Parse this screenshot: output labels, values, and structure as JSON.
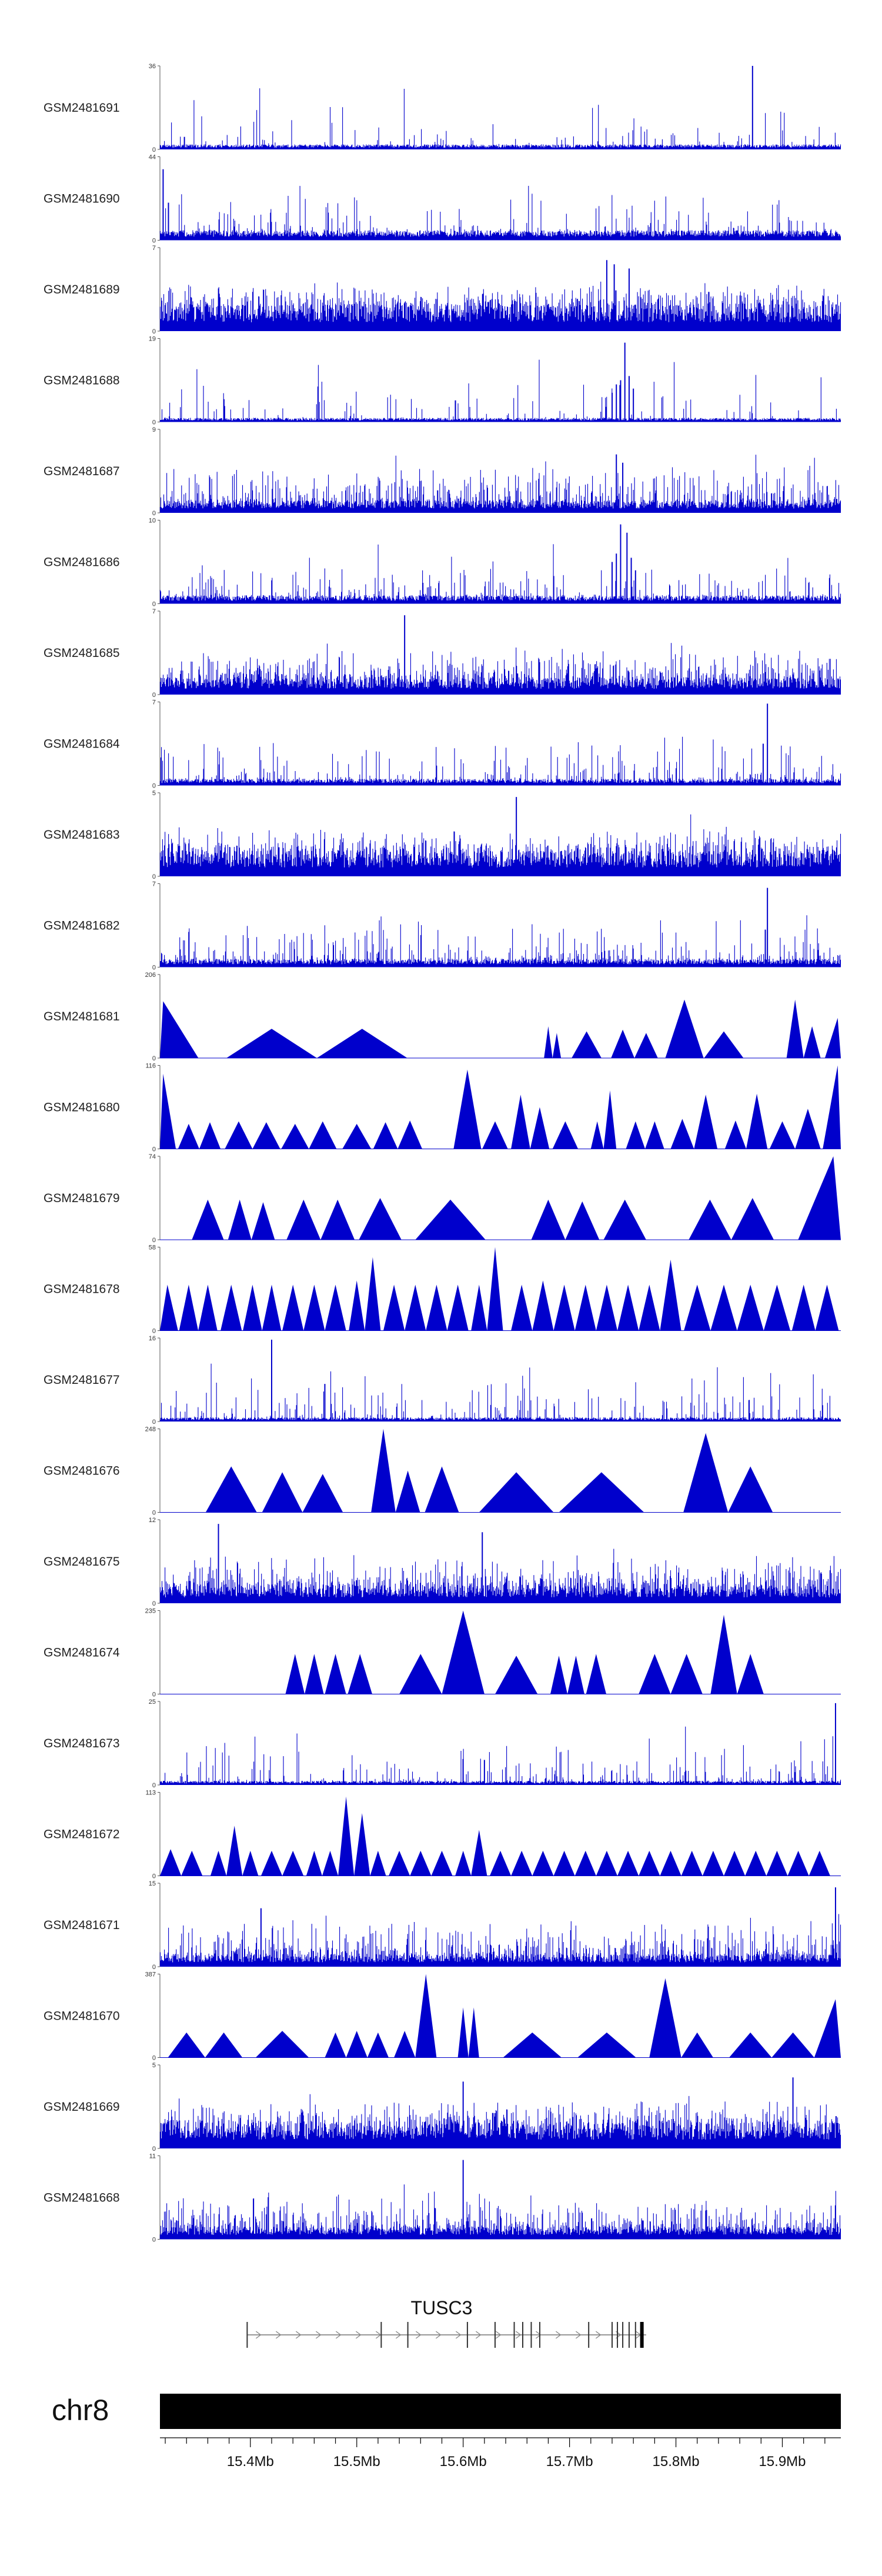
{
  "chart_data": {
    "type": "area",
    "chromosome": "chr8",
    "gene": "TUSC3",
    "x_range_mb": [
      15.315,
      15.955
    ],
    "axis_ticks_mb": [
      15.4,
      15.5,
      15.6,
      15.7,
      15.8,
      15.9
    ],
    "axis_tick_labels": [
      "15.4Mb",
      "15.5Mb",
      "15.6Mb",
      "15.7Mb",
      "15.8Mb",
      "15.9Mb"
    ],
    "color": "#0000cc",
    "series": [
      {
        "name": "GSM2481691",
        "ymax": 36,
        "ymax_label": "36",
        "ymin_label": "0",
        "style": "bars",
        "baseline": 0.06,
        "noise": 0.05,
        "spikes": [
          {
            "x": 15.872,
            "y": 1.0
          },
          {
            "x": 15.338,
            "y": 0.15
          }
        ]
      },
      {
        "name": "GSM2481690",
        "ymax": 44,
        "ymax_label": "44",
        "ymin_label": "0",
        "style": "bars",
        "baseline": 0.12,
        "noise": 0.1,
        "spikes": [
          {
            "x": 15.318,
            "y": 0.85
          },
          {
            "x": 15.323,
            "y": 0.45
          }
        ]
      },
      {
        "name": "GSM2481689",
        "ymax": 7,
        "ymax_label": "7",
        "ymin_label": "0",
        "style": "bars",
        "baseline": 0.3,
        "noise": 0.4,
        "spikes": [
          {
            "x": 15.735,
            "y": 0.85
          },
          {
            "x": 15.742,
            "y": 0.8
          },
          {
            "x": 15.756,
            "y": 0.75
          }
        ]
      },
      {
        "name": "GSM2481688",
        "ymax": 19,
        "ymax_label": "19",
        "ymin_label": "0",
        "style": "bars",
        "baseline": 0.05,
        "noise": 0.08,
        "spikes": [
          {
            "x": 15.752,
            "y": 0.95
          },
          {
            "x": 15.748,
            "y": 0.5
          },
          {
            "x": 15.744,
            "y": 0.45
          },
          {
            "x": 15.756,
            "y": 0.55
          },
          {
            "x": 15.74,
            "y": 0.35
          },
          {
            "x": 15.76,
            "y": 0.4
          }
        ]
      },
      {
        "name": "GSM2481687",
        "ymax": 9,
        "ymax_label": "9",
        "ymin_label": "0",
        "style": "bars",
        "baseline": 0.15,
        "noise": 0.3,
        "spikes": [
          {
            "x": 15.744,
            "y": 0.7
          },
          {
            "x": 15.75,
            "y": 0.6
          }
        ]
      },
      {
        "name": "GSM2481686",
        "ymax": 10,
        "ymax_label": "10",
        "ymin_label": "0",
        "style": "bars",
        "baseline": 0.1,
        "noise": 0.15,
        "spikes": [
          {
            "x": 15.748,
            "y": 0.95
          },
          {
            "x": 15.754,
            "y": 0.85
          },
          {
            "x": 15.744,
            "y": 0.6
          },
          {
            "x": 15.74,
            "y": 0.5
          },
          {
            "x": 15.758,
            "y": 0.55
          },
          {
            "x": 15.762,
            "y": 0.4
          }
        ]
      },
      {
        "name": "GSM2481685",
        "ymax": 7,
        "ymax_label": "7",
        "ymin_label": "0",
        "style": "bars",
        "baseline": 0.2,
        "noise": 0.35,
        "spikes": [
          {
            "x": 15.545,
            "y": 0.95
          }
        ]
      },
      {
        "name": "GSM2481684",
        "ymax": 7,
        "ymax_label": "7",
        "ymin_label": "0",
        "style": "bars",
        "baseline": 0.08,
        "noise": 0.15,
        "spikes": [
          {
            "x": 15.886,
            "y": 0.98
          },
          {
            "x": 15.882,
            "y": 0.5
          }
        ]
      },
      {
        "name": "GSM2481683",
        "ymax": 5,
        "ymax_label": "5",
        "ymin_label": "0",
        "style": "bars",
        "baseline": 0.3,
        "noise": 0.35,
        "spikes": [
          {
            "x": 15.65,
            "y": 0.95
          }
        ]
      },
      {
        "name": "GSM2481682",
        "ymax": 7,
        "ymax_label": "7",
        "ymin_label": "0",
        "style": "bars",
        "baseline": 0.1,
        "noise": 0.2,
        "spikes": [
          {
            "x": 15.886,
            "y": 0.95
          },
          {
            "x": 15.884,
            "y": 0.45
          }
        ]
      },
      {
        "name": "GSM2481681",
        "ymax": 206,
        "ymax_label": "206",
        "ymin_label": "0",
        "style": "triangles",
        "peaks": [
          [
            15.318,
            0.68
          ],
          [
            15.42,
            0.35
          ],
          [
            15.505,
            0.35
          ],
          [
            15.68,
            0.38
          ],
          [
            15.688,
            0.3
          ],
          [
            15.716,
            0.32
          ],
          [
            15.75,
            0.34
          ],
          [
            15.772,
            0.3
          ],
          [
            15.808,
            0.7
          ],
          [
            15.845,
            0.32
          ],
          [
            15.912,
            0.7
          ],
          [
            15.928,
            0.38
          ],
          [
            15.952,
            0.48
          ]
        ]
      },
      {
        "name": "GSM2481680",
        "ymax": 116,
        "ymax_label": "116",
        "ymin_label": "0",
        "style": "triangles",
        "peaks": [
          [
            15.318,
            0.9
          ],
          [
            15.342,
            0.3
          ],
          [
            15.362,
            0.32
          ],
          [
            15.389,
            0.33
          ],
          [
            15.415,
            0.32
          ],
          [
            15.442,
            0.3
          ],
          [
            15.468,
            0.33
          ],
          [
            15.5,
            0.3
          ],
          [
            15.527,
            0.32
          ],
          [
            15.55,
            0.34
          ],
          [
            15.604,
            0.95
          ],
          [
            15.63,
            0.33
          ],
          [
            15.654,
            0.65
          ],
          [
            15.672,
            0.5
          ],
          [
            15.696,
            0.33
          ],
          [
            15.726,
            0.33
          ],
          [
            15.738,
            0.7
          ],
          [
            15.762,
            0.33
          ],
          [
            15.78,
            0.33
          ],
          [
            15.806,
            0.36
          ],
          [
            15.828,
            0.65
          ],
          [
            15.856,
            0.34
          ],
          [
            15.876,
            0.66
          ],
          [
            15.9,
            0.33
          ],
          [
            15.924,
            0.48
          ],
          [
            15.952,
            1.0
          ]
        ]
      },
      {
        "name": "GSM2481679",
        "ymax": 74,
        "ymax_label": "74",
        "ymin_label": "0",
        "style": "triangles",
        "peaks": [
          [
            15.36,
            0.48
          ],
          [
            15.39,
            0.48
          ],
          [
            15.412,
            0.45
          ],
          [
            15.45,
            0.48
          ],
          [
            15.482,
            0.48
          ],
          [
            15.522,
            0.5
          ],
          [
            15.588,
            0.48
          ],
          [
            15.68,
            0.48
          ],
          [
            15.712,
            0.46
          ],
          [
            15.752,
            0.48
          ],
          [
            15.832,
            0.48
          ],
          [
            15.872,
            0.5
          ],
          [
            15.948,
            1.0
          ]
        ]
      },
      {
        "name": "GSM2481678",
        "ymax": 58,
        "ymax_label": "58",
        "ymin_label": "0",
        "style": "triangles",
        "peaks": [
          [
            15.322,
            0.55
          ],
          [
            15.342,
            0.55
          ],
          [
            15.36,
            0.55
          ],
          [
            15.382,
            0.55
          ],
          [
            15.402,
            0.55
          ],
          [
            15.42,
            0.55
          ],
          [
            15.44,
            0.55
          ],
          [
            15.46,
            0.55
          ],
          [
            15.48,
            0.55
          ],
          [
            15.5,
            0.6
          ],
          [
            15.515,
            0.88
          ],
          [
            15.535,
            0.55
          ],
          [
            15.555,
            0.55
          ],
          [
            15.575,
            0.55
          ],
          [
            15.595,
            0.55
          ],
          [
            15.615,
            0.55
          ],
          [
            15.63,
            1.0
          ],
          [
            15.655,
            0.55
          ],
          [
            15.675,
            0.6
          ],
          [
            15.695,
            0.55
          ],
          [
            15.715,
            0.55
          ],
          [
            15.735,
            0.55
          ],
          [
            15.755,
            0.55
          ],
          [
            15.775,
            0.55
          ],
          [
            15.795,
            0.85
          ],
          [
            15.82,
            0.55
          ],
          [
            15.845,
            0.55
          ],
          [
            15.87,
            0.55
          ],
          [
            15.895,
            0.55
          ],
          [
            15.92,
            0.55
          ],
          [
            15.942,
            0.55
          ]
        ]
      },
      {
        "name": "GSM2481677",
        "ymax": 16,
        "ymax_label": "16",
        "ymin_label": "0",
        "style": "bars",
        "baseline": 0.05,
        "noise": 0.15,
        "spikes": [
          {
            "x": 15.42,
            "y": 0.98
          },
          {
            "x": 15.47,
            "y": 0.45
          }
        ]
      },
      {
        "name": "GSM2481676",
        "ymax": 248,
        "ymax_label": "248",
        "ymin_label": "0",
        "style": "triangles",
        "peaks": [
          [
            15.382,
            0.55
          ],
          [
            15.43,
            0.48
          ],
          [
            15.468,
            0.46
          ],
          [
            15.525,
            1.0
          ],
          [
            15.548,
            0.5
          ],
          [
            15.58,
            0.55
          ],
          [
            15.65,
            0.48
          ],
          [
            15.73,
            0.48
          ],
          [
            15.828,
            0.95
          ],
          [
            15.87,
            0.55
          ]
        ]
      },
      {
        "name": "GSM2481675",
        "ymax": 12,
        "ymax_label": "12",
        "ymin_label": "0",
        "style": "bars",
        "baseline": 0.2,
        "noise": 0.4,
        "spikes": [
          {
            "x": 15.37,
            "y": 0.95
          },
          {
            "x": 15.618,
            "y": 0.85
          }
        ]
      },
      {
        "name": "GSM2481674",
        "ymax": 235,
        "ymax_label": "235",
        "ymin_label": "0",
        "style": "triangles",
        "peaks": [
          [
            15.442,
            0.48
          ],
          [
            15.46,
            0.48
          ],
          [
            15.48,
            0.48
          ],
          [
            15.503,
            0.48
          ],
          [
            15.56,
            0.48
          ],
          [
            15.6,
            1.0
          ],
          [
            15.65,
            0.46
          ],
          [
            15.69,
            0.46
          ],
          [
            15.706,
            0.46
          ],
          [
            15.725,
            0.48
          ],
          [
            15.78,
            0.48
          ],
          [
            15.81,
            0.48
          ],
          [
            15.845,
            0.95
          ],
          [
            15.87,
            0.48
          ]
        ]
      },
      {
        "name": "GSM2481673",
        "ymax": 25,
        "ymax_label": "25",
        "ymin_label": "0",
        "style": "bars",
        "baseline": 0.05,
        "noise": 0.15,
        "spikes": [
          {
            "x": 15.95,
            "y": 0.98
          },
          {
            "x": 15.62,
            "y": 0.3
          }
        ]
      },
      {
        "name": "GSM2481672",
        "ymax": 113,
        "ymax_label": "113",
        "ymin_label": "0",
        "style": "triangles",
        "peaks": [
          [
            15.325,
            0.32
          ],
          [
            15.345,
            0.3
          ],
          [
            15.37,
            0.3
          ],
          [
            15.385,
            0.6
          ],
          [
            15.4,
            0.3
          ],
          [
            15.42,
            0.3
          ],
          [
            15.44,
            0.3
          ],
          [
            15.46,
            0.3
          ],
          [
            15.475,
            0.3
          ],
          [
            15.49,
            0.95
          ],
          [
            15.505,
            0.75
          ],
          [
            15.52,
            0.3
          ],
          [
            15.54,
            0.3
          ],
          [
            15.56,
            0.3
          ],
          [
            15.58,
            0.3
          ],
          [
            15.6,
            0.3
          ],
          [
            15.615,
            0.55
          ],
          [
            15.635,
            0.3
          ],
          [
            15.655,
            0.3
          ],
          [
            15.675,
            0.3
          ],
          [
            15.695,
            0.3
          ],
          [
            15.715,
            0.3
          ],
          [
            15.735,
            0.3
          ],
          [
            15.755,
            0.3
          ],
          [
            15.775,
            0.3
          ],
          [
            15.795,
            0.3
          ],
          [
            15.815,
            0.3
          ],
          [
            15.835,
            0.3
          ],
          [
            15.855,
            0.3
          ],
          [
            15.875,
            0.3
          ],
          [
            15.895,
            0.3
          ],
          [
            15.915,
            0.3
          ],
          [
            15.935,
            0.3
          ]
        ]
      },
      {
        "name": "GSM2481671",
        "ymax": 15,
        "ymax_label": "15",
        "ymin_label": "0",
        "style": "bars",
        "baseline": 0.15,
        "noise": 0.35,
        "spikes": [
          {
            "x": 15.95,
            "y": 0.95
          },
          {
            "x": 15.41,
            "y": 0.7
          }
        ]
      },
      {
        "name": "GSM2481670",
        "ymax": 387,
        "ymax_label": "387",
        "ymin_label": "0",
        "style": "triangles",
        "peaks": [
          [
            15.34,
            0.3
          ],
          [
            15.375,
            0.3
          ],
          [
            15.43,
            0.32
          ],
          [
            15.48,
            0.3
          ],
          [
            15.5,
            0.32
          ],
          [
            15.52,
            0.3
          ],
          [
            15.545,
            0.32
          ],
          [
            15.565,
            1.0
          ],
          [
            15.6,
            0.6
          ],
          [
            15.61,
            0.6
          ],
          [
            15.665,
            0.3
          ],
          [
            15.735,
            0.3
          ],
          [
            15.79,
            0.95
          ],
          [
            15.82,
            0.3
          ],
          [
            15.87,
            0.3
          ],
          [
            15.91,
            0.3
          ],
          [
            15.95,
            0.7
          ]
        ]
      },
      {
        "name": "GSM2481669",
        "ymax": 5,
        "ymax_label": "5",
        "ymin_label": "0",
        "style": "bars",
        "baseline": 0.3,
        "noise": 0.35,
        "spikes": [
          {
            "x": 15.6,
            "y": 0.8
          },
          {
            "x": 15.91,
            "y": 0.85
          }
        ]
      },
      {
        "name": "GSM2481668",
        "ymax": 11,
        "ymax_label": "11",
        "ymin_label": "0",
        "style": "bars",
        "baseline": 0.15,
        "noise": 0.35,
        "spikes": [
          {
            "x": 15.6,
            "y": 0.95
          }
        ]
      }
    ],
    "gene_model": {
      "label": "TUSC3",
      "start_mb": 15.397,
      "end_mb": 15.772,
      "strand": "+",
      "exons_mb": [
        15.397,
        15.523,
        15.548,
        15.604,
        15.63,
        15.648,
        15.656,
        15.664,
        15.672,
        15.718,
        15.74,
        15.745,
        15.75,
        15.756,
        15.762,
        15.768
      ]
    }
  }
}
